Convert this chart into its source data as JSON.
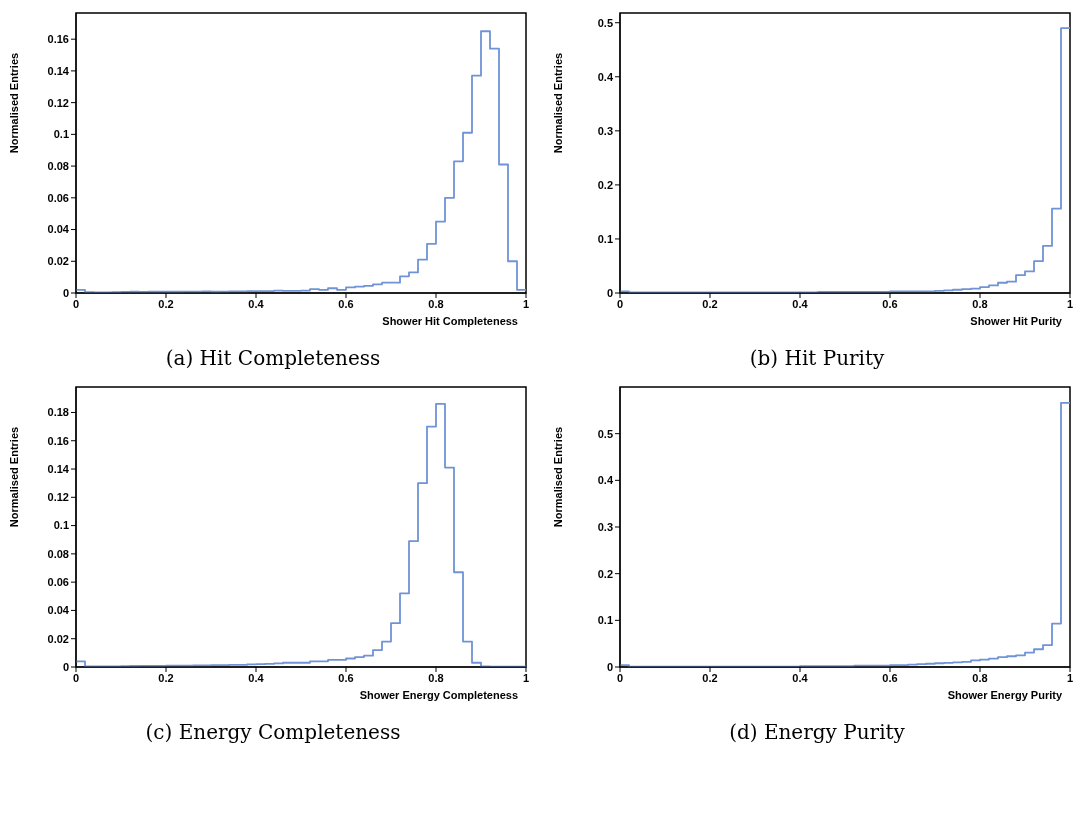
{
  "chart_data": [
    {
      "type": "histogram",
      "title": "(a) Hit Completeness",
      "xlabel": "Shower Hit Completeness",
      "ylabel": "Normalised Entries",
      "color": "#6f93d6",
      "bins": [
        0,
        0.02,
        0.04,
        0.06,
        0.08,
        0.1,
        0.12,
        0.14,
        0.16,
        0.18,
        0.2,
        0.22,
        0.24,
        0.26,
        0.28,
        0.3,
        0.32,
        0.34,
        0.36,
        0.38,
        0.4,
        0.42,
        0.44,
        0.46,
        0.48,
        0.5,
        0.52,
        0.54,
        0.56,
        0.58,
        0.6,
        0.62,
        0.64,
        0.66,
        0.68,
        0.7,
        0.72,
        0.74,
        0.76,
        0.78,
        0.8,
        0.82,
        0.84,
        0.86,
        0.88,
        0.9,
        0.92,
        0.94,
        0.96,
        0.98,
        1
      ],
      "values": [
        0.002,
        0.0005,
        0.0003,
        0.0003,
        0.0005,
        0.0007,
        0.0008,
        0.0007,
        0.0008,
        0.0008,
        0.0008,
        0.0008,
        0.0009,
        0.0009,
        0.001,
        0.0008,
        0.0009,
        0.001,
        0.001,
        0.0012,
        0.0012,
        0.0012,
        0.0015,
        0.0013,
        0.0014,
        0.0015,
        0.0025,
        0.002,
        0.003,
        0.002,
        0.0035,
        0.004,
        0.0045,
        0.0055,
        0.0065,
        0.0065,
        0.0105,
        0.013,
        0.021,
        0.031,
        0.045,
        0.06,
        0.083,
        0.101,
        0.137,
        0.165,
        0.154,
        0.081,
        0.02,
        0.002
      ],
      "xlim": [
        0,
        1
      ],
      "xticks": [
        0,
        0.2,
        0.4,
        0.6,
        0.8,
        1
      ],
      "ylim": [
        0,
        0.1765
      ],
      "yticks": [
        0,
        0.02,
        0.04,
        0.06,
        0.08,
        0.1,
        0.12,
        0.14,
        0.16
      ],
      "grid": false,
      "legend": false
    },
    {
      "type": "histogram",
      "title": "(b) Hit Purity",
      "xlabel": "Shower Hit Purity",
      "ylabel": "Normalised Entries",
      "color": "#6f93d6",
      "bins": [
        0,
        0.02,
        0.04,
        0.06,
        0.08,
        0.1,
        0.12,
        0.14,
        0.16,
        0.18,
        0.2,
        0.22,
        0.24,
        0.26,
        0.28,
        0.3,
        0.32,
        0.34,
        0.36,
        0.38,
        0.4,
        0.42,
        0.44,
        0.46,
        0.48,
        0.5,
        0.52,
        0.54,
        0.56,
        0.58,
        0.6,
        0.62,
        0.64,
        0.66,
        0.68,
        0.7,
        0.72,
        0.74,
        0.76,
        0.78,
        0.8,
        0.82,
        0.84,
        0.86,
        0.88,
        0.9,
        0.92,
        0.94,
        0.96,
        0.98,
        1
      ],
      "values": [
        0.003,
        0.001,
        0.001,
        0.001,
        0.001,
        0.001,
        0.001,
        0.001,
        0.001,
        0.001,
        0.001,
        0.001,
        0.001,
        0.001,
        0.001,
        0.001,
        0.001,
        0.001,
        0.001,
        0.001,
        0.001,
        0.001,
        0.002,
        0.002,
        0.002,
        0.002,
        0.002,
        0.002,
        0.002,
        0.002,
        0.003,
        0.003,
        0.003,
        0.003,
        0.003,
        0.004,
        0.005,
        0.006,
        0.007,
        0.008,
        0.011,
        0.014,
        0.019,
        0.021,
        0.033,
        0.04,
        0.059,
        0.087,
        0.156,
        0.49
      ],
      "xlim": [
        0,
        1
      ],
      "xticks": [
        0,
        0.2,
        0.4,
        0.6,
        0.8,
        1
      ],
      "ylim": [
        0,
        0.518
      ],
      "yticks": [
        0,
        0.1,
        0.2,
        0.3,
        0.4,
        0.5
      ],
      "grid": false,
      "legend": false
    },
    {
      "type": "histogram",
      "title": "(c) Energy Completeness",
      "xlabel": "Shower Energy Completeness",
      "ylabel": "Normalised Entries",
      "color": "#6f93d6",
      "bins": [
        0,
        0.02,
        0.04,
        0.06,
        0.08,
        0.1,
        0.12,
        0.14,
        0.16,
        0.18,
        0.2,
        0.22,
        0.24,
        0.26,
        0.28,
        0.3,
        0.32,
        0.34,
        0.36,
        0.38,
        0.4,
        0.42,
        0.44,
        0.46,
        0.48,
        0.5,
        0.52,
        0.54,
        0.56,
        0.58,
        0.6,
        0.62,
        0.64,
        0.66,
        0.68,
        0.7,
        0.72,
        0.74,
        0.76,
        0.78,
        0.8,
        0.82,
        0.84,
        0.86,
        0.88,
        0.9,
        0.92,
        0.94,
        0.96,
        0.98,
        1
      ],
      "values": [
        0.004,
        0.0005,
        0.0005,
        0.0005,
        0.0005,
        0.0006,
        0.0007,
        0.0008,
        0.0008,
        0.0008,
        0.001,
        0.001,
        0.001,
        0.0012,
        0.0012,
        0.0013,
        0.0013,
        0.0015,
        0.0015,
        0.0018,
        0.002,
        0.0022,
        0.0025,
        0.003,
        0.003,
        0.003,
        0.004,
        0.004,
        0.005,
        0.005,
        0.006,
        0.007,
        0.008,
        0.012,
        0.018,
        0.031,
        0.052,
        0.089,
        0.13,
        0.17,
        0.186,
        0.141,
        0.067,
        0.018,
        0.003,
        0.0005,
        0.0002,
        0.0002,
        0.0002,
        0.0002
      ],
      "xlim": [
        0,
        1
      ],
      "xticks": [
        0,
        0.2,
        0.4,
        0.6,
        0.8,
        1
      ],
      "ylim": [
        0,
        0.198
      ],
      "yticks": [
        0,
        0.02,
        0.04,
        0.06,
        0.08,
        0.1,
        0.12,
        0.14,
        0.16,
        0.18
      ],
      "grid": false,
      "legend": false
    },
    {
      "type": "histogram",
      "title": "(d) Energy Purity",
      "xlabel": "Shower Energy Purity",
      "ylabel": "Normalised Entries",
      "color": "#6f93d6",
      "bins": [
        0,
        0.02,
        0.04,
        0.06,
        0.08,
        0.1,
        0.12,
        0.14,
        0.16,
        0.18,
        0.2,
        0.22,
        0.24,
        0.26,
        0.28,
        0.3,
        0.32,
        0.34,
        0.36,
        0.38,
        0.4,
        0.42,
        0.44,
        0.46,
        0.48,
        0.5,
        0.52,
        0.54,
        0.56,
        0.58,
        0.6,
        0.62,
        0.64,
        0.66,
        0.68,
        0.7,
        0.72,
        0.74,
        0.76,
        0.78,
        0.8,
        0.82,
        0.84,
        0.86,
        0.88,
        0.9,
        0.92,
        0.94,
        0.96,
        0.98,
        1
      ],
      "values": [
        0.004,
        0.001,
        0.001,
        0.001,
        0.001,
        0.001,
        0.001,
        0.001,
        0.001,
        0.001,
        0.001,
        0.001,
        0.001,
        0.001,
        0.001,
        0.001,
        0.001,
        0.001,
        0.001,
        0.001,
        0.002,
        0.002,
        0.002,
        0.002,
        0.002,
        0.002,
        0.003,
        0.003,
        0.003,
        0.003,
        0.004,
        0.004,
        0.005,
        0.006,
        0.007,
        0.008,
        0.009,
        0.01,
        0.011,
        0.014,
        0.016,
        0.018,
        0.021,
        0.023,
        0.025,
        0.031,
        0.038,
        0.047,
        0.093,
        0.566
      ],
      "xlim": [
        0,
        1
      ],
      "xticks": [
        0,
        0.2,
        0.4,
        0.6,
        0.8,
        1
      ],
      "ylim": [
        0,
        0.6
      ],
      "yticks": [
        0,
        0.1,
        0.2,
        0.3,
        0.4,
        0.5
      ],
      "grid": false,
      "legend": false
    }
  ]
}
